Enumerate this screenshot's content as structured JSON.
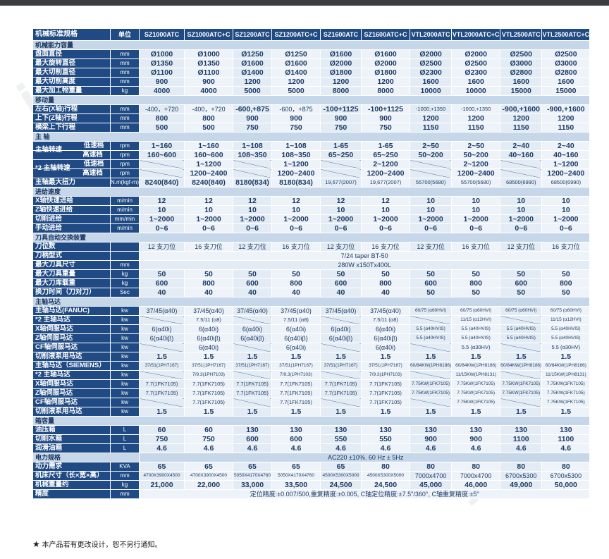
{
  "watermark": {
    "left": "jc35",
    "right": "jc35"
  },
  "note": "本产品若有更改设计，恕不另行通知。",
  "header": [
    "机械标准规格",
    "单位",
    "SZ1000ATC",
    "SZ1000ATC+C",
    "SZ1200ATC",
    "SZ1200ATC+C",
    "SZ1600ATC",
    "SZ1600ATC+C",
    "VTL2000ATC",
    "VTL2000ATC+C",
    "VTL2500ATC",
    "VTL2500ATC+C"
  ],
  "rows": [
    {
      "t": "sec",
      "label": "机械能力容量"
    },
    {
      "label": "盘面直径",
      "unit": "mm",
      "v": [
        "Ø1000",
        "Ø1000",
        "Ø1250",
        "Ø1250",
        "Ø1600",
        "Ø1600",
        "Ø2000",
        "Ø2000",
        "Ø2500",
        "Ø2500"
      ]
    },
    {
      "label": "最大旋转直径",
      "unit": "mm",
      "v": [
        "Ø1350",
        "Ø1350",
        "Ø1600",
        "Ø1600",
        "Ø2000",
        "Ø2000",
        "Ø2500",
        "Ø2500",
        "Ø3000",
        "Ø3000"
      ]
    },
    {
      "label": "最大切削直径",
      "unit": "mm",
      "v": [
        "Ø1100",
        "Ø1100",
        "Ø1400",
        "Ø1400",
        "Ø1800",
        "Ø1800",
        "Ø2300",
        "Ø2300",
        "Ø2800",
        "Ø2800"
      ]
    },
    {
      "label": "最大切削高度",
      "unit": "mm",
      "v": [
        "900",
        "900",
        "1200",
        "1200",
        "1200",
        "1200",
        "1600",
        "1600",
        "1600",
        "1600"
      ]
    },
    {
      "label": "最大加工物重量",
      "unit": "kg",
      "v": [
        "4000",
        "4000",
        "5000",
        "5000",
        "8000",
        "8000",
        "10000",
        "10000",
        "15000",
        "15000"
      ]
    },
    {
      "t": "sec",
      "label": "移动量"
    },
    {
      "label": "左右(X轴)行程",
      "unit": "mm",
      "v": [
        "-400，+720",
        "-400，+720",
        "-600,+875",
        "-600，+875",
        "-100+1125",
        "-100+1125",
        "-1000,+1350",
        "-1000,+1350",
        "-900,+1600",
        "-900,+1600"
      ]
    },
    {
      "label": "上下(Z轴)行程",
      "unit": "mm",
      "v": [
        "800",
        "800",
        "900",
        "900",
        "900",
        "900",
        "1200",
        "1200",
        "1200",
        "1200"
      ]
    },
    {
      "label": "横梁上下行程",
      "unit": "mm",
      "v": [
        "500",
        "500",
        "750",
        "750",
        "750",
        "750",
        "1150",
        "1150",
        "1150",
        "1150"
      ]
    },
    {
      "t": "sec",
      "label": "主  轴"
    },
    {
      "label": "主轴转速",
      "sub": "低速档",
      "unit": "rpm",
      "span": "s1",
      "v": [
        "1~160",
        "1~160",
        "1~108",
        "1~108",
        "1-65",
        "1-65",
        "2~50",
        "2~50",
        "2~40",
        "2~40"
      ]
    },
    {
      "sub": "高速档",
      "unit": "rpm",
      "v": [
        "160~600",
        "160~600",
        "108~350",
        "108~350",
        "65~250",
        "65~250",
        "50~200",
        "50~200",
        "40~160",
        "40~160"
      ]
    },
    {
      "label": "*2 主轴转速",
      "sub": "低速档",
      "unit": "rpm",
      "span": "s2",
      "v": [
        "",
        "1~1200",
        "",
        "1~1200",
        "",
        "2~1200",
        "",
        "2~1200",
        "",
        "1~1200"
      ]
    },
    {
      "sub": "高速档",
      "unit": "rpm",
      "v": [
        "",
        "1200~2400",
        "",
        "1200~2400",
        "",
        "1200~2400",
        "",
        "1200~2400",
        "",
        "1200~2400"
      ]
    },
    {
      "label": "主轴最大扭力",
      "unit": "N.m(kgf-m)",
      "v": [
        "8240(840)",
        "8240(840)",
        "8180(834)",
        "8180(834)",
        "19,677(2007)",
        "19,677(2007)",
        "55700(5680)",
        "55700(5680)",
        "68500(6990)",
        "68500(6990)"
      ]
    },
    {
      "t": "sec",
      "label": "进给速度"
    },
    {
      "label": "X轴快速进给",
      "unit": "m/min",
      "v": [
        "12",
        "12",
        "12",
        "12",
        "12",
        "12",
        "10",
        "10",
        "10",
        "10"
      ]
    },
    {
      "label": "Z轴快速进给",
      "unit": "m/min",
      "v": [
        "10",
        "10",
        "10",
        "10",
        "10",
        "10",
        "10",
        "10",
        "10",
        "10"
      ]
    },
    {
      "label": "切削进给",
      "unit": "mm/min",
      "v": [
        "1~2000",
        "1~2000",
        "1~2000",
        "1~2000",
        "1~2000",
        "1~2000",
        "1~2000",
        "1~2000",
        "1~2000",
        "1~2000"
      ]
    },
    {
      "label": "手动进给",
      "unit": "m/min",
      "v": [
        "0~6",
        "0~6",
        "0~6",
        "0~6",
        "0~6",
        "0~6",
        "0~6",
        "0~6",
        "0~6",
        "0~6"
      ]
    },
    {
      "t": "sec",
      "label": "刀具自动交换装置"
    },
    {
      "label": "刀位数",
      "unit": "",
      "v": [
        "12 支刀位",
        "16 支刀位",
        "12 支刀位",
        "16 支刀位",
        "12 支刀位",
        "16 支刀位",
        "12 支刀位",
        "16 支刀位",
        "12 支刀位",
        "16 支刀位"
      ]
    },
    {
      "label": "刀柄型式",
      "unit": "",
      "all": "7/24 taper BT-50"
    },
    {
      "label": "最大刀具尺寸",
      "unit": "mm",
      "all": "280W x150Tx400L"
    },
    {
      "label": "最大刀具重量",
      "unit": "kg",
      "v": [
        "50",
        "50",
        "50",
        "50",
        "50",
        "50",
        "50",
        "50",
        "50",
        "50"
      ]
    },
    {
      "label": "最大刀库载重",
      "unit": "kg",
      "v": [
        "600",
        "800",
        "600",
        "800",
        "600",
        "800",
        "600",
        "800",
        "600",
        "800"
      ]
    },
    {
      "label": "换刀时间（刀对刀）",
      "unit": "Sec",
      "v": [
        "40",
        "40",
        "40",
        "40",
        "40",
        "40",
        "50",
        "50",
        "50",
        "50"
      ]
    },
    {
      "t": "sec",
      "label": "主轴马达"
    },
    {
      "label": "主轴马达(FANUC)",
      "unit": "kw",
      "v": [
        "37/45(α40)",
        "37/45(α40)",
        "37/45(α40)",
        "37/45(α40)",
        "37/45(α40)",
        "37/45(α40)",
        "60/75 (α60HVI)",
        "60/75 (α60HVI)",
        "60/75 (α60HVI)",
        "60/75 (α60HVI)"
      ]
    },
    {
      "label": "*2 主轴马达",
      "unit": "kw",
      "v": [
        "",
        "7.5/11 (α8)",
        "",
        "7.5/11 (α8)",
        "",
        "7.5/11 (α8)",
        "",
        "11/15 (α12HVI)",
        "",
        "11/15 (α12HVI)"
      ]
    },
    {
      "label": "X轴伺服马达",
      "unit": "kw",
      "v": [
        "6(α40i)",
        "6(α40i)",
        "6(α40i)",
        "6(α40i)",
        "6(α40i)",
        "6(α40i)",
        "5.5 (α40HVIS)",
        "5.5 (α40HVIS)",
        "5.5 (α40HVIS)",
        "5.5 (α40HVIS)"
      ]
    },
    {
      "label": "Z轴伺服马达",
      "unit": "kw",
      "v": [
        "6(α40iβ)",
        "6(α40iβ)",
        "6(α40iβ)",
        "6(α40iβ)",
        "6(α40iβ)",
        "6(α40iβ)",
        "5.5 (α40HVIS)",
        "5.5 (α40HVIS)",
        "5.5 (α40HVIS)",
        "5.5 (α40HVIS)"
      ]
    },
    {
      "label": "CF轴伺服马达",
      "unit": "kw",
      "v": [
        "",
        "6(α40i)",
        "",
        "6(α40i)",
        "",
        "6(α40i)",
        "",
        "5.5 (α30HV)",
        "",
        "5.5 (α30HV)"
      ]
    },
    {
      "label": "切削液泵用马达",
      "unit": "kw",
      "v": [
        "1.5",
        "1.5",
        "1.5",
        "1.5",
        "1.5",
        "1.5",
        "1.5",
        "1.5",
        "1.5",
        "1.5"
      ]
    },
    {
      "label": "主轴马达（SIEMENS）",
      "unit": "kw",
      "v": [
        "37/51(1PH7167)",
        "37/51(1PH7167)",
        "37/51(1PH7167)",
        "37/51(1PH7167)",
        "37/51(1PH7167)",
        "37/51(1PH7167)",
        "60/84KW(1PH8186)",
        "60/84KW(1PH8186)",
        "60/84KW(1PH8186)",
        "60/84KW(1PH8186)"
      ]
    },
    {
      "label": "*2 主轴马达",
      "unit": "kw",
      "v": [
        "",
        "7/9.3(1PH7103)",
        "",
        "7/9.3(1PH7103)",
        "",
        "7/9.3(1PH7103)",
        "",
        "11/15KW(1PH8131)",
        "",
        "11/15KW(1PH8131)"
      ]
    },
    {
      "label": "X轴伺服马达",
      "unit": "kw",
      "v": [
        "7.7(1FK7105)",
        "7.7(1FK7105)",
        "7.7(1FK7105)",
        "7.7(1FK7105)",
        "7.7(1FK7105)",
        "7.7(1FK7105)",
        "7.75KW(1FK7105)",
        "7.75KW(1FK7105)",
        "7.75KW(1FK7105)",
        "7.75KW(1FK7105)"
      ]
    },
    {
      "label": "Z轴伺服马达",
      "unit": "kw",
      "v": [
        "7.7(1FK7105)",
        "7.7(1FK7105)",
        "7.7(1FK7105)",
        "7.7(1FK7105)",
        "7.7(1FK7105)",
        "7.7(1FK7105)",
        "7.75KW(1FK7105)",
        "7.75KW(1FK7105)",
        "7.75KW(1FK7105)",
        "7.75KW(1FK7105)"
      ]
    },
    {
      "label": "CF轴伺服马达",
      "unit": "kw",
      "v": [
        "",
        "7.7(1FK7105)",
        "",
        "7.7(1FK7105)",
        "",
        "7.7(1FK7105)",
        "",
        "7.75KW(1FK7105)",
        "",
        "7.75KW(1FK7105)"
      ]
    },
    {
      "label": "切削液泵用马达",
      "unit": "kw",
      "v": [
        "1.5",
        "1.5",
        "1.5",
        "1.5",
        "1.5",
        "1.5",
        "1.5",
        "1.5",
        "1.5",
        "1.5"
      ]
    },
    {
      "t": "sec",
      "label": "箱容量"
    },
    {
      "label": "油压箱",
      "unit": "L",
      "v": [
        "60",
        "60",
        "130",
        "130",
        "130",
        "130",
        "130",
        "130",
        "130",
        "130"
      ]
    },
    {
      "label": "切削水箱",
      "unit": "L",
      "v": [
        "750",
        "750",
        "600",
        "600",
        "550",
        "550",
        "900",
        "900",
        "1100",
        "1100"
      ]
    },
    {
      "label": "润滑油箱",
      "unit": "L",
      "v": [
        "4.6",
        "4.6",
        "4.6",
        "4.6",
        "4.6",
        "4.6",
        "4.6",
        "4.6",
        "4.6",
        "4.6"
      ]
    },
    {
      "t": "sec",
      "label": "电力规格",
      "all": "AC220 ±10%. 60 Hz ± 5Hz"
    },
    {
      "label": "动力需求",
      "unit": "KVA",
      "v": [
        "65",
        "65",
        "65",
        "65",
        "65",
        "80",
        "80",
        "80",
        "80",
        "80"
      ]
    },
    {
      "label": "机床尺寸（长×宽×高）",
      "unit": "mm",
      "v": [
        "4700X3900X4500",
        "4700X3900X4500",
        "5050X4170X4760",
        "5050X4170X4760",
        "4500X5300X5000",
        "4500X5300X5000",
        "7000x4700",
        "7000x4700",
        "6700x5300",
        "6700x5300"
      ]
    },
    {
      "label": "机械重量约",
      "unit": "kg",
      "v": [
        "21,000",
        "22,000",
        "33,000",
        "33,500",
        "24,500",
        "24,500",
        "45,000",
        "46,000",
        "49,000",
        "50,000"
      ]
    },
    {
      "label": "精度",
      "unit": "mm",
      "all": "定位精度:±0.007/500,重复精度:±0.005, C轴定位精度:±7.5\"/360°, C轴重复精度:±5\""
    }
  ]
}
